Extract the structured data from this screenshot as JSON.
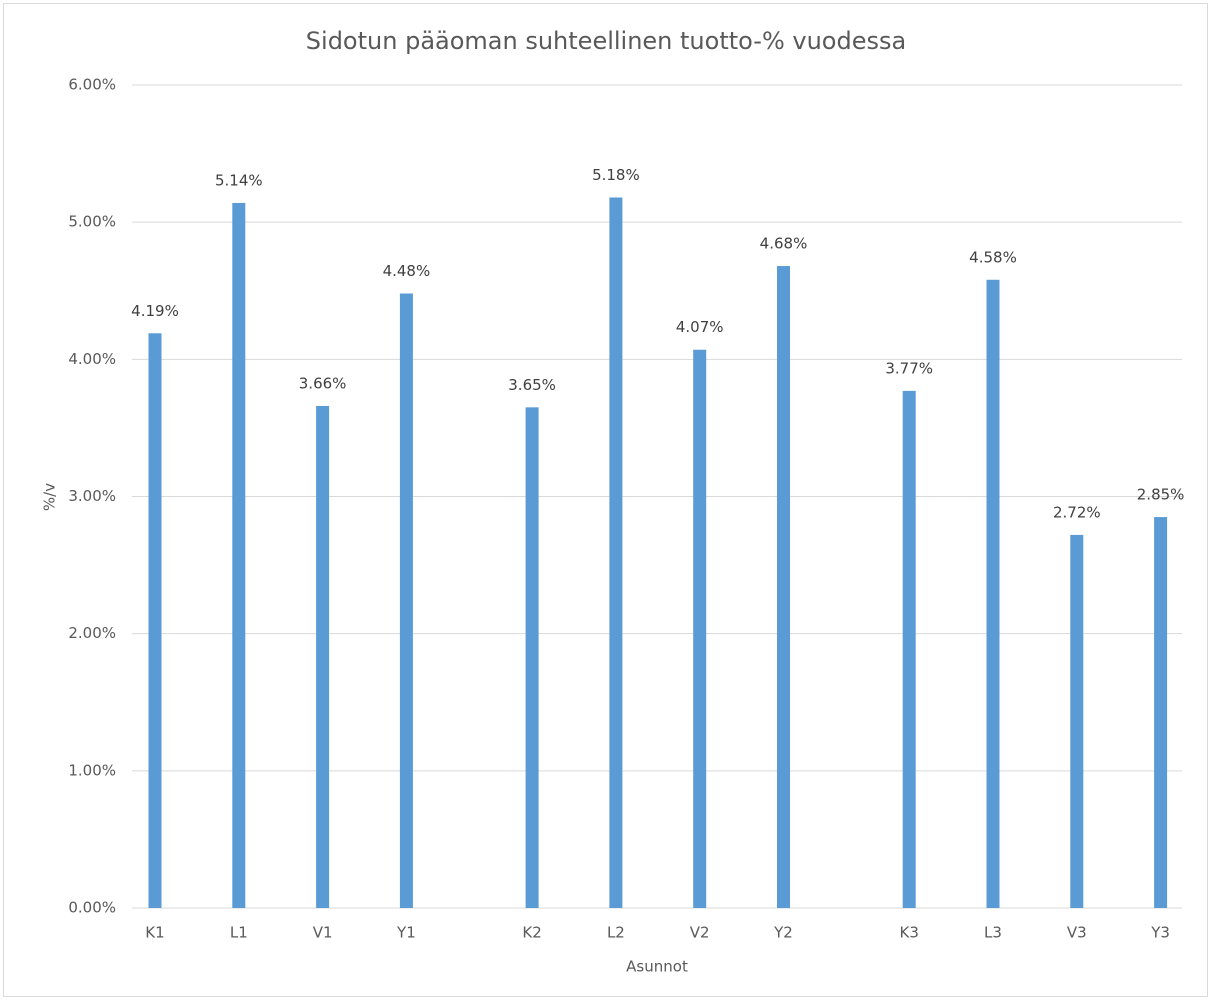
{
  "chart_data": {
    "type": "bar",
    "title": "Sidotun pääoman suhteellinen tuotto-% vuodessa",
    "x_label": "Asunnot",
    "y_label": "%/v",
    "categories": [
      "K1",
      "L1",
      "V1",
      "Y1",
      "K2",
      "L2",
      "V2",
      "Y2",
      "K3",
      "L3",
      "V3",
      "Y3"
    ],
    "values": [
      4.19,
      5.14,
      3.66,
      4.48,
      3.65,
      5.18,
      4.07,
      4.68,
      3.77,
      4.58,
      2.72,
      2.85
    ],
    "value_labels": [
      "4.19%",
      "5.14%",
      "3.66%",
      "4.48%",
      "3.65%",
      "5.18%",
      "4.07%",
      "4.68%",
      "3.77%",
      "4.58%",
      "2.72%",
      "2.85%"
    ],
    "color": "#5b9bd5",
    "ylim": [
      0,
      6
    ],
    "yticks": [
      {
        "value": 0,
        "label": "0.00%"
      },
      {
        "value": 1,
        "label": "1.00%"
      },
      {
        "value": 2,
        "label": "2.00%"
      },
      {
        "value": 3,
        "label": "3.00%"
      },
      {
        "value": 4,
        "label": "4.00%"
      },
      {
        "value": 5,
        "label": "5.00%"
      },
      {
        "value": 6,
        "label": "6.00%"
      }
    ],
    "grid": true
  }
}
